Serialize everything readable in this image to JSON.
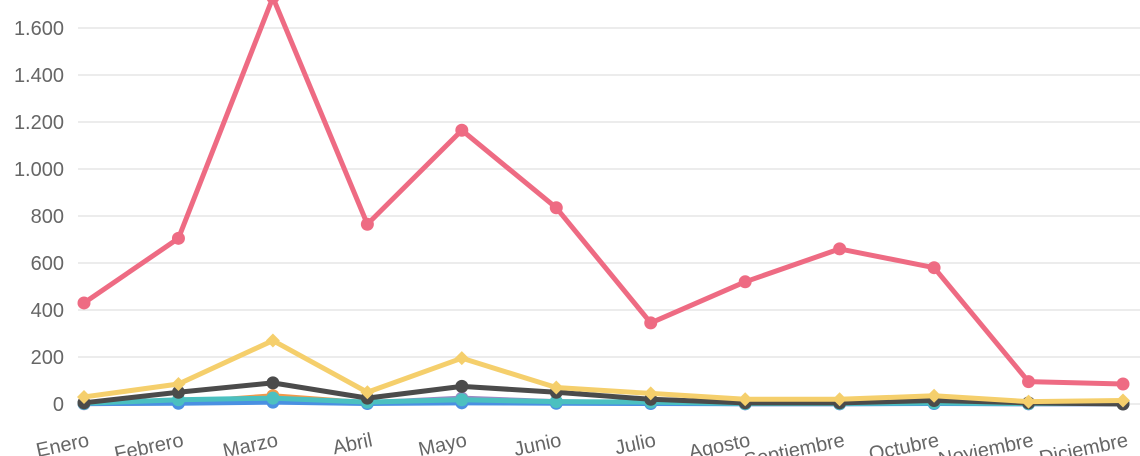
{
  "chart_data": {
    "type": "line",
    "categories": [
      "Enero",
      "Febrero",
      "Marzo",
      "Abril",
      "Mayo",
      "Junio",
      "Julio",
      "Agosto",
      "Septiembre",
      "Octubre",
      "Noviembre",
      "Diciembre"
    ],
    "x_tick_labels": [
      "Enero",
      "Febrero",
      "Marzo",
      "Abril",
      "Mayo",
      "Junio",
      "Julio",
      "Agosto",
      "Septiembre",
      "Octubre",
      "Noviembre",
      "Diciembre"
    ],
    "y_tick_labels": [
      "0",
      "200",
      "400",
      "600",
      "800",
      "1.000",
      "1.200",
      "1.400",
      "1.600"
    ],
    "y_ticks": [
      0,
      200,
      400,
      600,
      800,
      1000,
      1200,
      1400,
      1600
    ],
    "ylim": [
      0,
      1700
    ],
    "grid": true,
    "series": [
      {
        "color": "#ee6b83",
        "marker": "circle",
        "values": [
          430,
          705,
          1730,
          765,
          1165,
          835,
          345,
          520,
          660,
          580,
          95,
          85
        ]
      },
      {
        "color": "#4b4b4b",
        "marker": "circle",
        "values": [
          5,
          50,
          90,
          25,
          75,
          50,
          20,
          5,
          5,
          15,
          5,
          0
        ]
      },
      {
        "color": "#4bc0c0",
        "marker": "circle",
        "values": [
          3,
          18,
          25,
          8,
          18,
          10,
          8,
          2,
          2,
          5,
          2,
          2
        ]
      },
      {
        "color": "#4a90e2",
        "marker": "circle",
        "values": [
          2,
          3,
          8,
          2,
          5,
          3,
          2,
          1,
          1,
          2,
          1,
          1
        ]
      },
      {
        "color": "#9b8ac4",
        "marker": "circle",
        "values": [
          1,
          5,
          15,
          5,
          25,
          10,
          5,
          1,
          1,
          3,
          1,
          1
        ]
      },
      {
        "color": "#f2994a",
        "marker": "circle",
        "values": [
          5,
          5,
          35,
          5,
          10,
          5,
          5,
          3,
          3,
          5,
          3,
          3
        ]
      },
      {
        "color": "#f5cf6c",
        "marker": "diamond",
        "values": [
          30,
          85,
          270,
          50,
          195,
          70,
          45,
          20,
          20,
          35,
          10,
          15
        ]
      }
    ]
  }
}
